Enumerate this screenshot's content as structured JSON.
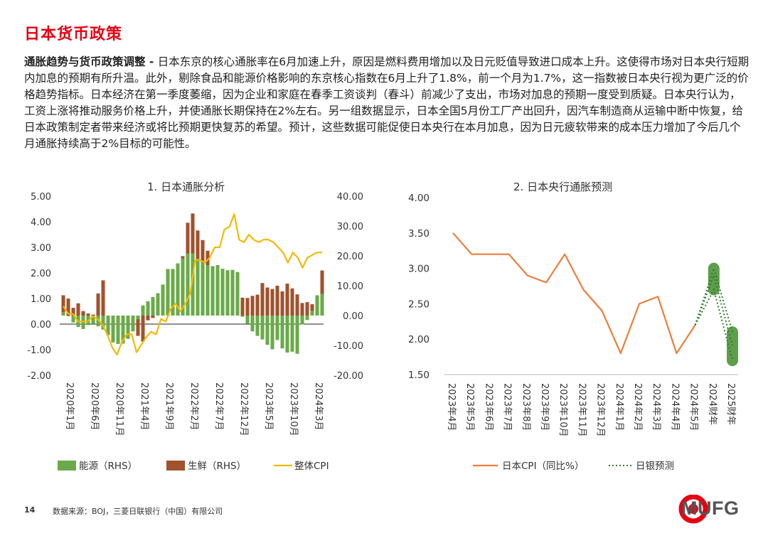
{
  "page": {
    "title": "日本货币政策",
    "lead_bold": "通胀趋势与货币政策调整 - ",
    "lead_text": "日本东京的核心通胀率在6月加速上升，原因是燃料费用增加以及日元贬值导致进口成本上升。这使得市场对日本央行短期内加息的预期有所升温。此外，剔除食品和能源价格影响的东京核心指数在6月上升了1.8%，前一个月为1.7%，这一指数被日本央行视为更广泛的价格趋势指标。日本经济在第一季度萎缩，因为企业和家庭在春季工资谈判（春斗）前减少了支出，市场对加息的预期一度受到质疑。日本央行认为，工资上涨将推动服务价格上升，并使通胀长期保持在2%左右。另一组数据显示，日本全国5月份工厂产出回升，因汽车制造商从运输中断中恢复，给日本政策制定者带来经济或将比预期更快复苏的希望。预计，这些数据可能促使日本央行在本月加息，因为日元疲软带来的成本压力增加了今后几个月通胀持续高于2%目标的可能性。",
    "page_number": "14",
    "source": "数据来源：BOJ，三菱日联银行（中国）有限公司",
    "logo_text": "MUFG",
    "colors": {
      "title": "#e60012",
      "energy": "#6aaa4a",
      "fresh": "#a0522d",
      "cpi": "#f5b800",
      "jp_cpi": "#ee7d3a",
      "boj": "#2f7d2f",
      "boj_band": "#5f9e4c"
    }
  },
  "chart_data": [
    {
      "type": "bar",
      "title": "1. 日本通胀分析",
      "left_axis": {
        "ylim": [
          -2,
          5
        ],
        "ticks": [
          "5.00",
          "4.00",
          "3.00",
          "2.00",
          "1.00",
          "0.00",
          "-1.00",
          "-2.00"
        ]
      },
      "right_axis": {
        "ylim": [
          -20,
          40
        ],
        "ticks": [
          "40.00",
          "30.00",
          "20.00",
          "10.00",
          "0.00",
          "-10.00",
          "-20.00"
        ]
      },
      "x_tick_labels": [
        "2020年1月",
        "2020年6月",
        "2020年11月",
        "2021年4月",
        "2021年9月",
        "2022年2月",
        "2022年7月",
        "2022年12月",
        "2023年5月",
        "2023年10月",
        "2024年3月"
      ],
      "x_tick_index": [
        0,
        5,
        10,
        15,
        20,
        25,
        30,
        35,
        40,
        45,
        50
      ],
      "series": [
        {
          "name": "能源（RHS）",
          "axis": "right",
          "values": [
            1.2,
            -0.2,
            -2.3,
            -3.8,
            -4.5,
            -3.2,
            -2.8,
            -3.6,
            -4.7,
            -6.6,
            -9.0,
            -9.5,
            -9.4,
            -7.8,
            -5.3,
            -1.2,
            3.4,
            4.8,
            6.2,
            7.5,
            10.4,
            15.6,
            15.6,
            17.5,
            19.2,
            20.8,
            20.8,
            19.1,
            17.8,
            16.9,
            16.3,
            16.9,
            15.7,
            15.2,
            15.3,
            14.6,
            -0.4,
            -2.8,
            -5.3,
            -6.8,
            -8.0,
            -9.8,
            -11.3,
            -8.2,
            -11.0,
            -12.4,
            -12.1,
            -12.8,
            -3.0,
            -1.5,
            1.6,
            6.8,
            7.3
          ]
        },
        {
          "name": "生鲜（RHS）",
          "axis": "right",
          "values": [
            6.8,
            5.7,
            2.6,
            4.1,
            1.5,
            0.7,
            0.3,
            7.4,
            11.8,
            -0.3,
            -5.8,
            -2.1,
            -0.6,
            -3.5,
            -3.2,
            -6.8,
            -8.7,
            -1.6,
            -0.8,
            1.4,
            1.3,
            5.6,
            5.4,
            11.1,
            19.9,
            31.1,
            34.2,
            28.5,
            25.3,
            21.7,
            16.5,
            14.7,
            10.7,
            14.2,
            10.8,
            8.0,
            6.0,
            5.9,
            6.6,
            7.0,
            10.9,
            9.4,
            8.9,
            10.0,
            8.1,
            10.7,
            9.1,
            7.1,
            4.2,
            4.5,
            3.8,
            6.1,
            15.1
          ]
        },
        {
          "name": "整体CPI",
          "axis": "left",
          "values": [
            0.7,
            0.4,
            0.4,
            0.1,
            0.1,
            0.1,
            0.3,
            0.2,
            0.0,
            -0.4,
            -0.9,
            -1.2,
            -0.7,
            -0.4,
            -0.4,
            -1.1,
            -0.8,
            -0.5,
            -0.3,
            -0.4,
            0.2,
            0.1,
            0.6,
            0.8,
            0.5,
            0.8,
            1.2,
            2.5,
            2.5,
            2.4,
            2.6,
            3.0,
            3.0,
            3.7,
            3.8,
            4.3,
            3.3,
            3.2,
            3.5,
            3.3,
            3.2,
            3.3,
            3.3,
            3.2,
            3.0,
            2.8,
            2.4,
            2.8,
            2.6,
            2.2,
            2.6,
            2.7,
            2.8,
            2.8
          ]
        }
      ],
      "legend": [
        "能源（RHS）",
        "生鲜（RHS）",
        "整体CPI"
      ]
    },
    {
      "type": "line",
      "title": "2. 日本央行通胀预测",
      "ylim": [
        1.5,
        4.0
      ],
      "y_ticks": [
        "4.00",
        "3.50",
        "3.00",
        "2.50",
        "2.00",
        "1.50"
      ],
      "categories": [
        "2023年4月",
        "2023年5月",
        "2023年6月",
        "2023年7月",
        "2023年8月",
        "2023年9月",
        "2023年10月",
        "2023年11月",
        "2023年12月",
        "2024年1月",
        "2024年2月",
        "2024年3月",
        "2024年4月",
        "2024年5月",
        "2024财年",
        "2025财年"
      ],
      "series": [
        {
          "name": "日本CPI（同比%）",
          "values": [
            3.5,
            3.2,
            3.2,
            3.2,
            2.9,
            2.8,
            3.2,
            2.7,
            2.4,
            1.8,
            2.5,
            2.6,
            1.8,
            2.2,
            null,
            null
          ]
        },
        {
          "name": "日银预测",
          "forecast_points": [
            {
              "category": "2024年5月",
              "values": [
                2.2
              ]
            },
            {
              "category": "2024财年",
              "range": [
                2.7,
                3.0
              ],
              "median": 2.9
            },
            {
              "category": "2025财年",
              "range": [
                1.7,
                2.1
              ],
              "median": 1.9
            }
          ]
        }
      ],
      "legend": [
        "日本CPI（同比%）",
        "日银预测"
      ]
    }
  ]
}
